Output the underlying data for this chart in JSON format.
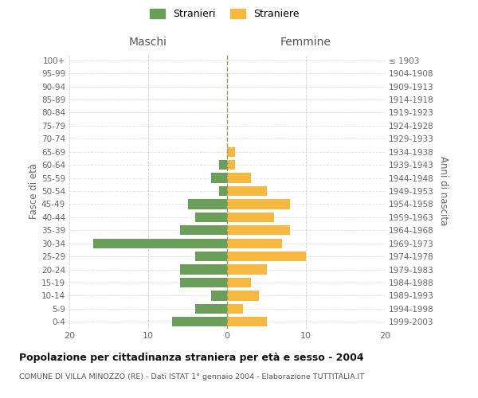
{
  "age_groups": [
    "0-4",
    "5-9",
    "10-14",
    "15-19",
    "20-24",
    "25-29",
    "30-34",
    "35-39",
    "40-44",
    "45-49",
    "50-54",
    "55-59",
    "60-64",
    "65-69",
    "70-74",
    "75-79",
    "80-84",
    "85-89",
    "90-94",
    "95-99",
    "100+"
  ],
  "birth_years": [
    "1999-2003",
    "1994-1998",
    "1989-1993",
    "1984-1988",
    "1979-1983",
    "1974-1978",
    "1969-1973",
    "1964-1968",
    "1959-1963",
    "1954-1958",
    "1949-1953",
    "1944-1948",
    "1939-1943",
    "1934-1938",
    "1929-1933",
    "1924-1928",
    "1919-1923",
    "1914-1918",
    "1909-1913",
    "1904-1908",
    "≤ 1903"
  ],
  "maschi": [
    7,
    4,
    2,
    6,
    6,
    4,
    17,
    6,
    4,
    5,
    1,
    2,
    1,
    0,
    0,
    0,
    0,
    0,
    0,
    0,
    0
  ],
  "femmine": [
    5,
    2,
    4,
    3,
    5,
    10,
    7,
    8,
    6,
    8,
    5,
    3,
    1,
    1,
    0,
    0,
    0,
    0,
    0,
    0,
    0
  ],
  "maschi_color": "#6a9e5a",
  "femmine_color": "#f5b942",
  "background_color": "#ffffff",
  "grid_color": "#cccccc",
  "title": "Popolazione per cittadinanza straniera per età e sesso - 2004",
  "subtitle": "COMUNE DI VILLA MINOZZO (RE) - Dati ISTAT 1° gennaio 2004 - Elaborazione TUTTITALIA.IT",
  "ylabel_left": "Fasce di età",
  "ylabel_right": "Anni di nascita",
  "label_maschi": "Maschi",
  "label_femmine": "Femmine",
  "legend_maschi": "Stranieri",
  "legend_femmine": "Straniere",
  "xlim": 20,
  "bar_height": 0.75
}
